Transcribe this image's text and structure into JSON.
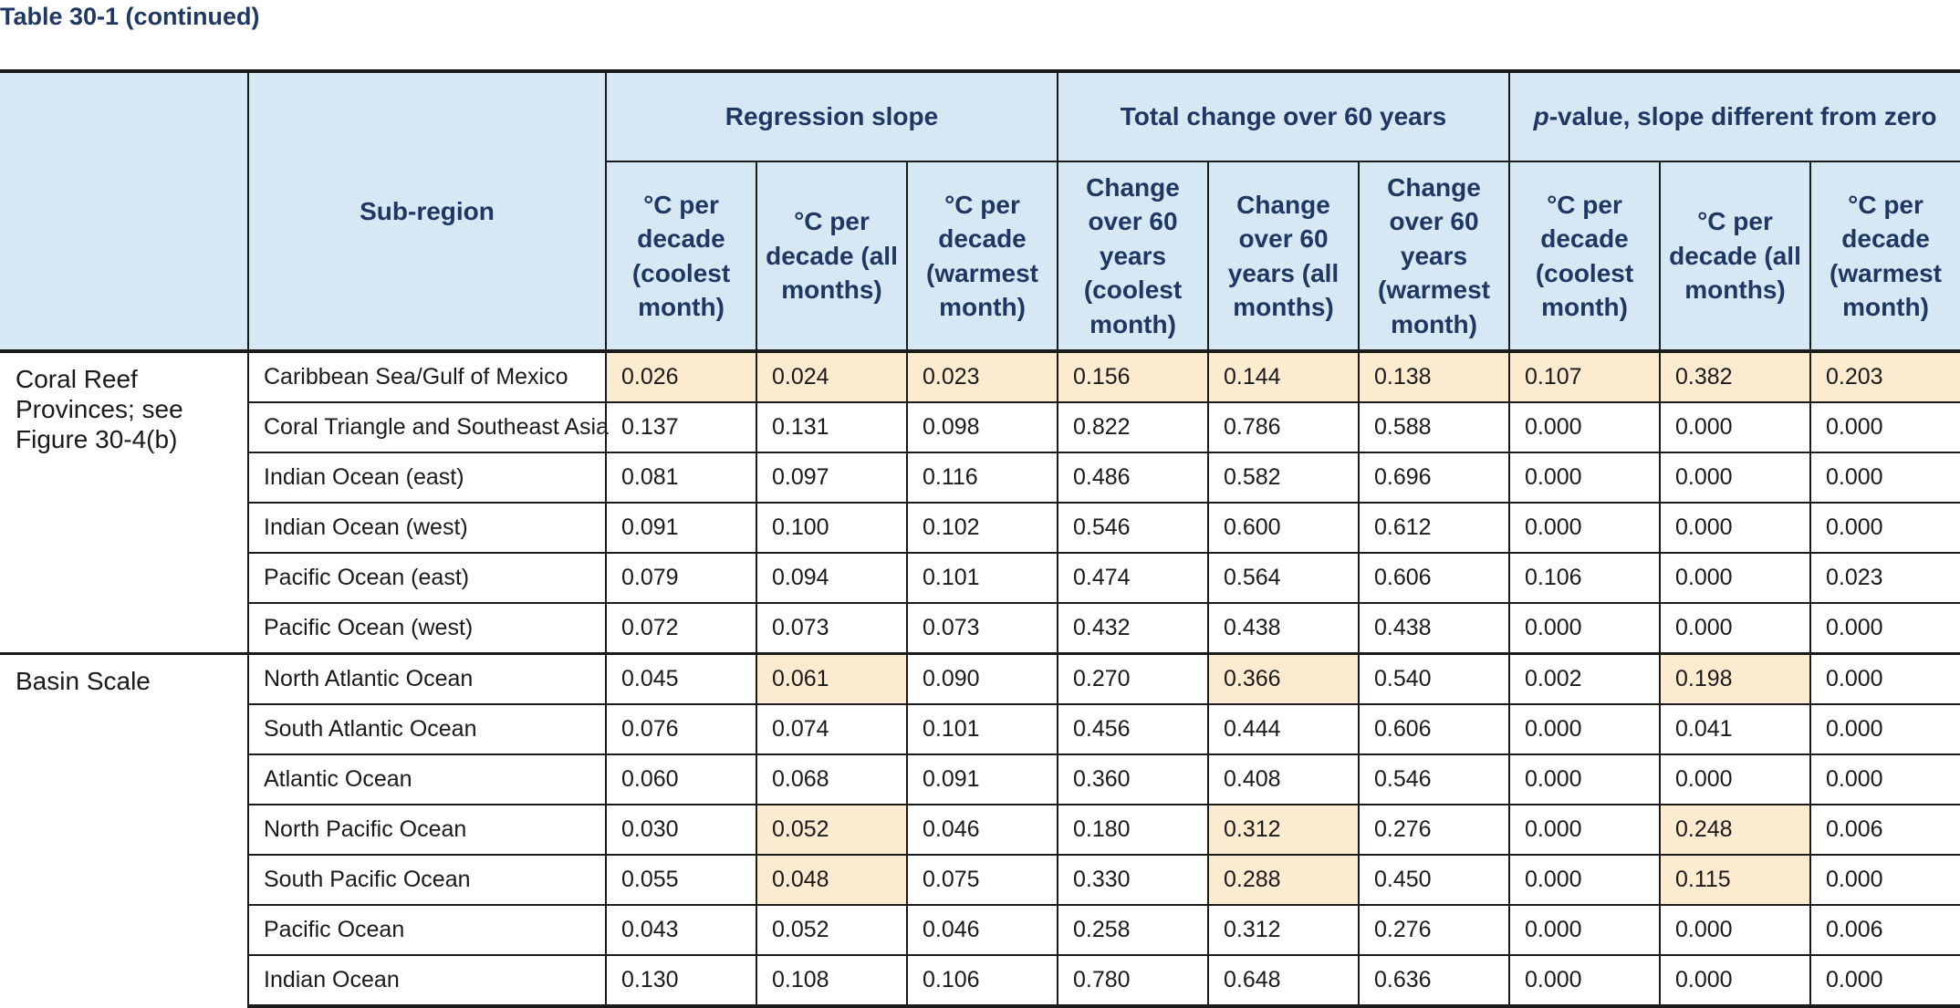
{
  "title": "Table 30-1 (continued)",
  "header": {
    "subregion": "Sub-region",
    "groups": [
      "Regression slope",
      "Total change over 60 years",
      "-value, slope different from zero"
    ],
    "p_letter": "p",
    "cols": [
      "°C per decade (coolest month)",
      "°C per decade (all months)",
      "°C per decade (warmest month)",
      "Change over 60 years (coolest month)",
      "Change over 60 years (all months)",
      "Change over 60 years (warmest month)",
      "°C per decade (coolest month)",
      "°C per decade (all months)",
      "°C per decade (warmest month)"
    ]
  },
  "groups": [
    {
      "label": "Coral Reef Provinces; see Figure 30-4(b)",
      "rows": [
        {
          "sub": "Caribbean Sea/Gulf of Mexico",
          "v": [
            "0.026",
            "0.024",
            "0.023",
            "0.156",
            "0.144",
            "0.138",
            "0.107",
            "0.382",
            "0.203"
          ],
          "hl": [
            1,
            1,
            1,
            1,
            1,
            1,
            1,
            1,
            1
          ]
        },
        {
          "sub": "Coral Triangle and Southeast Asia",
          "v": [
            "0.137",
            "0.131",
            "0.098",
            "0.822",
            "0.786",
            "0.588",
            "0.000",
            "0.000",
            "0.000"
          ],
          "hl": [
            0,
            0,
            0,
            0,
            0,
            0,
            0,
            0,
            0
          ]
        },
        {
          "sub": "Indian Ocean (east)",
          "v": [
            "0.081",
            "0.097",
            "0.116",
            "0.486",
            "0.582",
            "0.696",
            "0.000",
            "0.000",
            "0.000"
          ],
          "hl": [
            0,
            0,
            0,
            0,
            0,
            0,
            0,
            0,
            0
          ]
        },
        {
          "sub": "Indian Ocean (west)",
          "v": [
            "0.091",
            "0.100",
            "0.102",
            "0.546",
            "0.600",
            "0.612",
            "0.000",
            "0.000",
            "0.000"
          ],
          "hl": [
            0,
            0,
            0,
            0,
            0,
            0,
            0,
            0,
            0
          ]
        },
        {
          "sub": "Pacific Ocean (east)",
          "v": [
            "0.079",
            "0.094",
            "0.101",
            "0.474",
            "0.564",
            "0.606",
            "0.106",
            "0.000",
            "0.023"
          ],
          "hl": [
            0,
            0,
            0,
            0,
            0,
            0,
            0,
            0,
            0
          ]
        },
        {
          "sub": "Pacific Ocean (west)",
          "v": [
            "0.072",
            "0.073",
            "0.073",
            "0.432",
            "0.438",
            "0.438",
            "0.000",
            "0.000",
            "0.000"
          ],
          "hl": [
            0,
            0,
            0,
            0,
            0,
            0,
            0,
            0,
            0
          ]
        }
      ]
    },
    {
      "label": "Basin Scale",
      "rows": [
        {
          "sub": "North Atlantic Ocean",
          "v": [
            "0.045",
            "0.061",
            "0.090",
            "0.270",
            "0.366",
            "0.540",
            "0.002",
            "0.198",
            "0.000"
          ],
          "hl": [
            0,
            1,
            0,
            0,
            1,
            0,
            0,
            1,
            0
          ]
        },
        {
          "sub": "South Atlantic Ocean",
          "v": [
            "0.076",
            "0.074",
            "0.101",
            "0.456",
            "0.444",
            "0.606",
            "0.000",
            "0.041",
            "0.000"
          ],
          "hl": [
            0,
            0,
            0,
            0,
            0,
            0,
            0,
            0,
            0
          ]
        },
        {
          "sub": "Atlantic Ocean",
          "v": [
            "0.060",
            "0.068",
            "0.091",
            "0.360",
            "0.408",
            "0.546",
            "0.000",
            "0.000",
            "0.000"
          ],
          "hl": [
            0,
            0,
            0,
            0,
            0,
            0,
            0,
            0,
            0
          ]
        },
        {
          "sub": "North Pacific Ocean",
          "v": [
            "0.030",
            "0.052",
            "0.046",
            "0.180",
            "0.312",
            "0.276",
            "0.000",
            "0.248",
            "0.006"
          ],
          "hl": [
            0,
            1,
            0,
            0,
            1,
            0,
            0,
            1,
            0
          ]
        },
        {
          "sub": "South Pacific Ocean",
          "v": [
            "0.055",
            "0.048",
            "0.075",
            "0.330",
            "0.288",
            "0.450",
            "0.000",
            "0.115",
            "0.000"
          ],
          "hl": [
            0,
            1,
            0,
            0,
            1,
            0,
            0,
            1,
            0
          ]
        },
        {
          "sub": "Pacific Ocean",
          "v": [
            "0.043",
            "0.052",
            "0.046",
            "0.258",
            "0.312",
            "0.276",
            "0.000",
            "0.000",
            "0.006"
          ],
          "hl": [
            0,
            0,
            0,
            0,
            0,
            0,
            0,
            0,
            0
          ]
        },
        {
          "sub": "Indian Ocean",
          "v": [
            "0.130",
            "0.108",
            "0.106",
            "0.780",
            "0.648",
            "0.636",
            "0.000",
            "0.000",
            "0.000"
          ],
          "hl": [
            0,
            0,
            0,
            0,
            0,
            0,
            0,
            0,
            0
          ]
        }
      ]
    }
  ],
  "colors": {
    "header_bg": "#d6e8f4",
    "header_text": "#1f3863",
    "highlight": "#fdebd0"
  }
}
